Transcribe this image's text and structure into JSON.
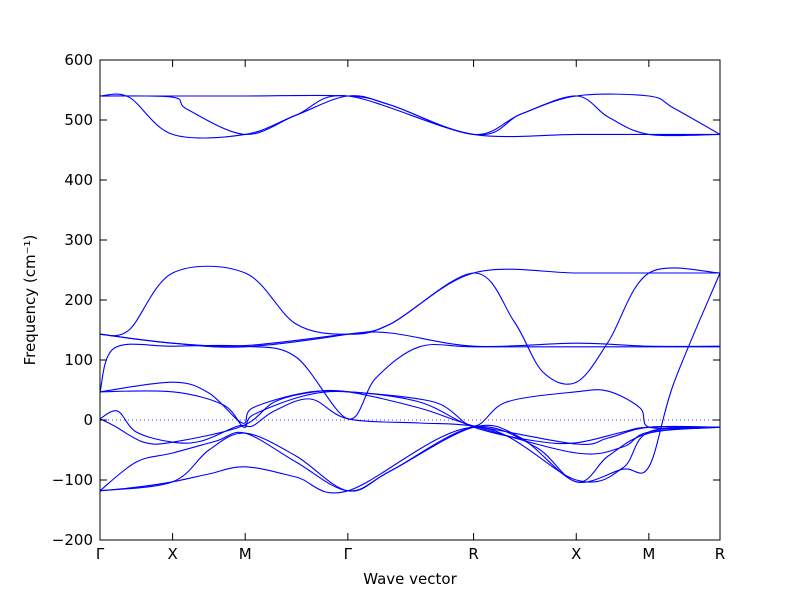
{
  "chart_data": {
    "type": "line",
    "xlabel": "Wave vector",
    "ylabel": "Frequency (cm⁻¹)",
    "ylim": [
      -200,
      600
    ],
    "yticks": [
      -200,
      -100,
      0,
      100,
      200,
      300,
      400,
      500,
      600
    ],
    "kpoints": [
      {
        "label": "Γ",
        "pos": 0.0
      },
      {
        "label": "X",
        "pos": 0.5
      },
      {
        "label": "M",
        "pos": 1.0
      },
      {
        "label": "Γ",
        "pos": 1.707
      },
      {
        "label": "R",
        "pos": 2.573
      },
      {
        "label": "X",
        "pos": 3.28
      },
      {
        "label": "M",
        "pos": 3.78
      },
      {
        "label": "R",
        "pos": 4.27
      }
    ],
    "zero_reference_line": 0,
    "series_color": "#0000ff",
    "bands": [
      [
        [
          0,
          540
        ],
        [
          0.5,
          540
        ],
        [
          1.0,
          540
        ],
        [
          1.707,
          540
        ],
        [
          2.0,
          525
        ],
        [
          2.573,
          476
        ],
        [
          2.9,
          510
        ],
        [
          3.28,
          540
        ],
        [
          3.78,
          540
        ],
        [
          3.95,
          520
        ],
        [
          4.27,
          476
        ]
      ],
      [
        [
          0,
          540
        ],
        [
          0.2,
          538
        ],
        [
          0.5,
          476
        ],
        [
          1.0,
          476
        ],
        [
          1.35,
          508
        ],
        [
          1.707,
          540
        ],
        [
          2.0,
          525
        ],
        [
          2.573,
          476
        ],
        [
          3.28,
          476
        ],
        [
          3.78,
          476
        ],
        [
          4.27,
          476
        ]
      ],
      [
        [
          0,
          540
        ],
        [
          0.5,
          538
        ],
        [
          0.6,
          518
        ],
        [
          1.0,
          476
        ],
        [
          1.35,
          508
        ],
        [
          1.707,
          540
        ],
        [
          2.573,
          476
        ],
        [
          2.9,
          510
        ],
        [
          3.28,
          540
        ],
        [
          3.5,
          505
        ],
        [
          3.78,
          476
        ],
        [
          4.27,
          476
        ]
      ],
      [
        [
          0,
          143
        ],
        [
          0.2,
          150
        ],
        [
          0.5,
          245
        ],
        [
          1.0,
          245
        ],
        [
          1.35,
          160
        ],
        [
          1.707,
          143
        ],
        [
          2.0,
          160
        ],
        [
          2.573,
          245
        ],
        [
          3.28,
          245
        ],
        [
          3.78,
          245
        ],
        [
          4.27,
          245
        ]
      ],
      [
        [
          0,
          143
        ],
        [
          0.5,
          128
        ],
        [
          1.0,
          122
        ],
        [
          1.707,
          143
        ],
        [
          2.0,
          160
        ],
        [
          2.573,
          245
        ],
        [
          2.85,
          165
        ],
        [
          3.05,
          80
        ],
        [
          3.28,
          63
        ],
        [
          3.5,
          130
        ],
        [
          3.78,
          245
        ],
        [
          4.27,
          245
        ]
      ],
      [
        [
          0,
          143
        ],
        [
          0.5,
          128
        ],
        [
          1.0,
          124
        ],
        [
          1.707,
          143
        ],
        [
          2.0,
          145
        ],
        [
          2.573,
          123
        ],
        [
          3.28,
          128
        ],
        [
          3.78,
          123
        ],
        [
          4.27,
          123
        ]
      ],
      [
        [
          0,
          47
        ],
        [
          0.1,
          120
        ],
        [
          0.5,
          123
        ],
        [
          1.0,
          123
        ],
        [
          1.35,
          105
        ],
        [
          1.707,
          2
        ],
        [
          1.9,
          70
        ],
        [
          2.2,
          122
        ],
        [
          2.573,
          122
        ],
        [
          3.28,
          122
        ],
        [
          3.78,
          122
        ],
        [
          4.27,
          122
        ]
      ],
      [
        [
          0,
          47
        ],
        [
          0.5,
          47
        ],
        [
          0.85,
          25
        ],
        [
          0.99,
          -12
        ],
        [
          1.05,
          8
        ],
        [
          1.4,
          40
        ],
        [
          1.707,
          47
        ],
        [
          2.2,
          30
        ],
        [
          2.573,
          -12
        ],
        [
          3.0,
          -35
        ],
        [
          3.28,
          -38
        ],
        [
          3.6,
          -20
        ],
        [
          3.78,
          -12
        ],
        [
          4.27,
          -12
        ]
      ],
      [
        [
          0,
          47
        ],
        [
          0.5,
          63
        ],
        [
          0.75,
          45
        ],
        [
          0.98,
          -5
        ],
        [
          1.05,
          20
        ],
        [
          1.4,
          45
        ],
        [
          1.707,
          47
        ],
        [
          2.3,
          30
        ],
        [
          2.573,
          -10
        ],
        [
          2.8,
          30
        ],
        [
          3.28,
          47
        ],
        [
          3.5,
          48
        ],
        [
          3.72,
          20
        ],
        [
          3.78,
          -12
        ],
        [
          4.27,
          -12
        ]
      ],
      [
        [
          0,
          2
        ],
        [
          0.12,
          15
        ],
        [
          0.25,
          -20
        ],
        [
          0.5,
          -37
        ],
        [
          0.7,
          -35
        ],
        [
          0.95,
          -10
        ],
        [
          1.05,
          -10
        ],
        [
          1.2,
          15
        ],
        [
          1.45,
          35
        ],
        [
          1.707,
          2
        ],
        [
          2.2,
          -5
        ],
        [
          2.573,
          -10
        ],
        [
          3.28,
          -40
        ],
        [
          3.5,
          -30
        ],
        [
          3.78,
          -12
        ],
        [
          4.27,
          -12
        ]
      ],
      [
        [
          0,
          2
        ],
        [
          0.1,
          -10
        ],
        [
          0.3,
          -37
        ],
        [
          0.5,
          -37
        ],
        [
          0.98,
          -10
        ],
        [
          1.2,
          30
        ],
        [
          1.45,
          46
        ],
        [
          1.707,
          47
        ],
        [
          2.2,
          20
        ],
        [
          2.573,
          -10
        ],
        [
          3.28,
          -55
        ],
        [
          3.6,
          -45
        ],
        [
          3.78,
          -20
        ],
        [
          4.27,
          -12
        ]
      ],
      [
        [
          0,
          -118
        ],
        [
          0.25,
          -70
        ],
        [
          0.5,
          -55
        ],
        [
          0.8,
          -35
        ],
        [
          1.0,
          -22
        ],
        [
          1.35,
          -70
        ],
        [
          1.707,
          -118
        ],
        [
          2.0,
          -85
        ],
        [
          2.573,
          -12
        ],
        [
          3.0,
          -45
        ],
        [
          3.28,
          -103
        ],
        [
          3.6,
          -82
        ],
        [
          3.78,
          -78
        ],
        [
          3.95,
          60
        ],
        [
          4.27,
          245
        ]
      ],
      [
        [
          0,
          -118
        ],
        [
          0.5,
          -103
        ],
        [
          0.75,
          -50
        ],
        [
          1.0,
          -22
        ],
        [
          1.35,
          -60
        ],
        [
          1.707,
          -118
        ],
        [
          2.0,
          -85
        ],
        [
          2.573,
          -12
        ],
        [
          2.9,
          -30
        ],
        [
          3.28,
          -103
        ],
        [
          3.5,
          -60
        ],
        [
          3.78,
          -22
        ],
        [
          4.27,
          -12
        ]
      ],
      [
        [
          0,
          -118
        ],
        [
          0.25,
          -112
        ],
        [
          0.5,
          -103
        ],
        [
          0.75,
          -90
        ],
        [
          1.0,
          -78
        ],
        [
          1.35,
          -95
        ],
        [
          1.707,
          -118
        ],
        [
          2.573,
          -12
        ],
        [
          3.28,
          -100
        ],
        [
          3.6,
          -80
        ],
        [
          3.78,
          -20
        ],
        [
          4.27,
          -12
        ]
      ]
    ]
  }
}
